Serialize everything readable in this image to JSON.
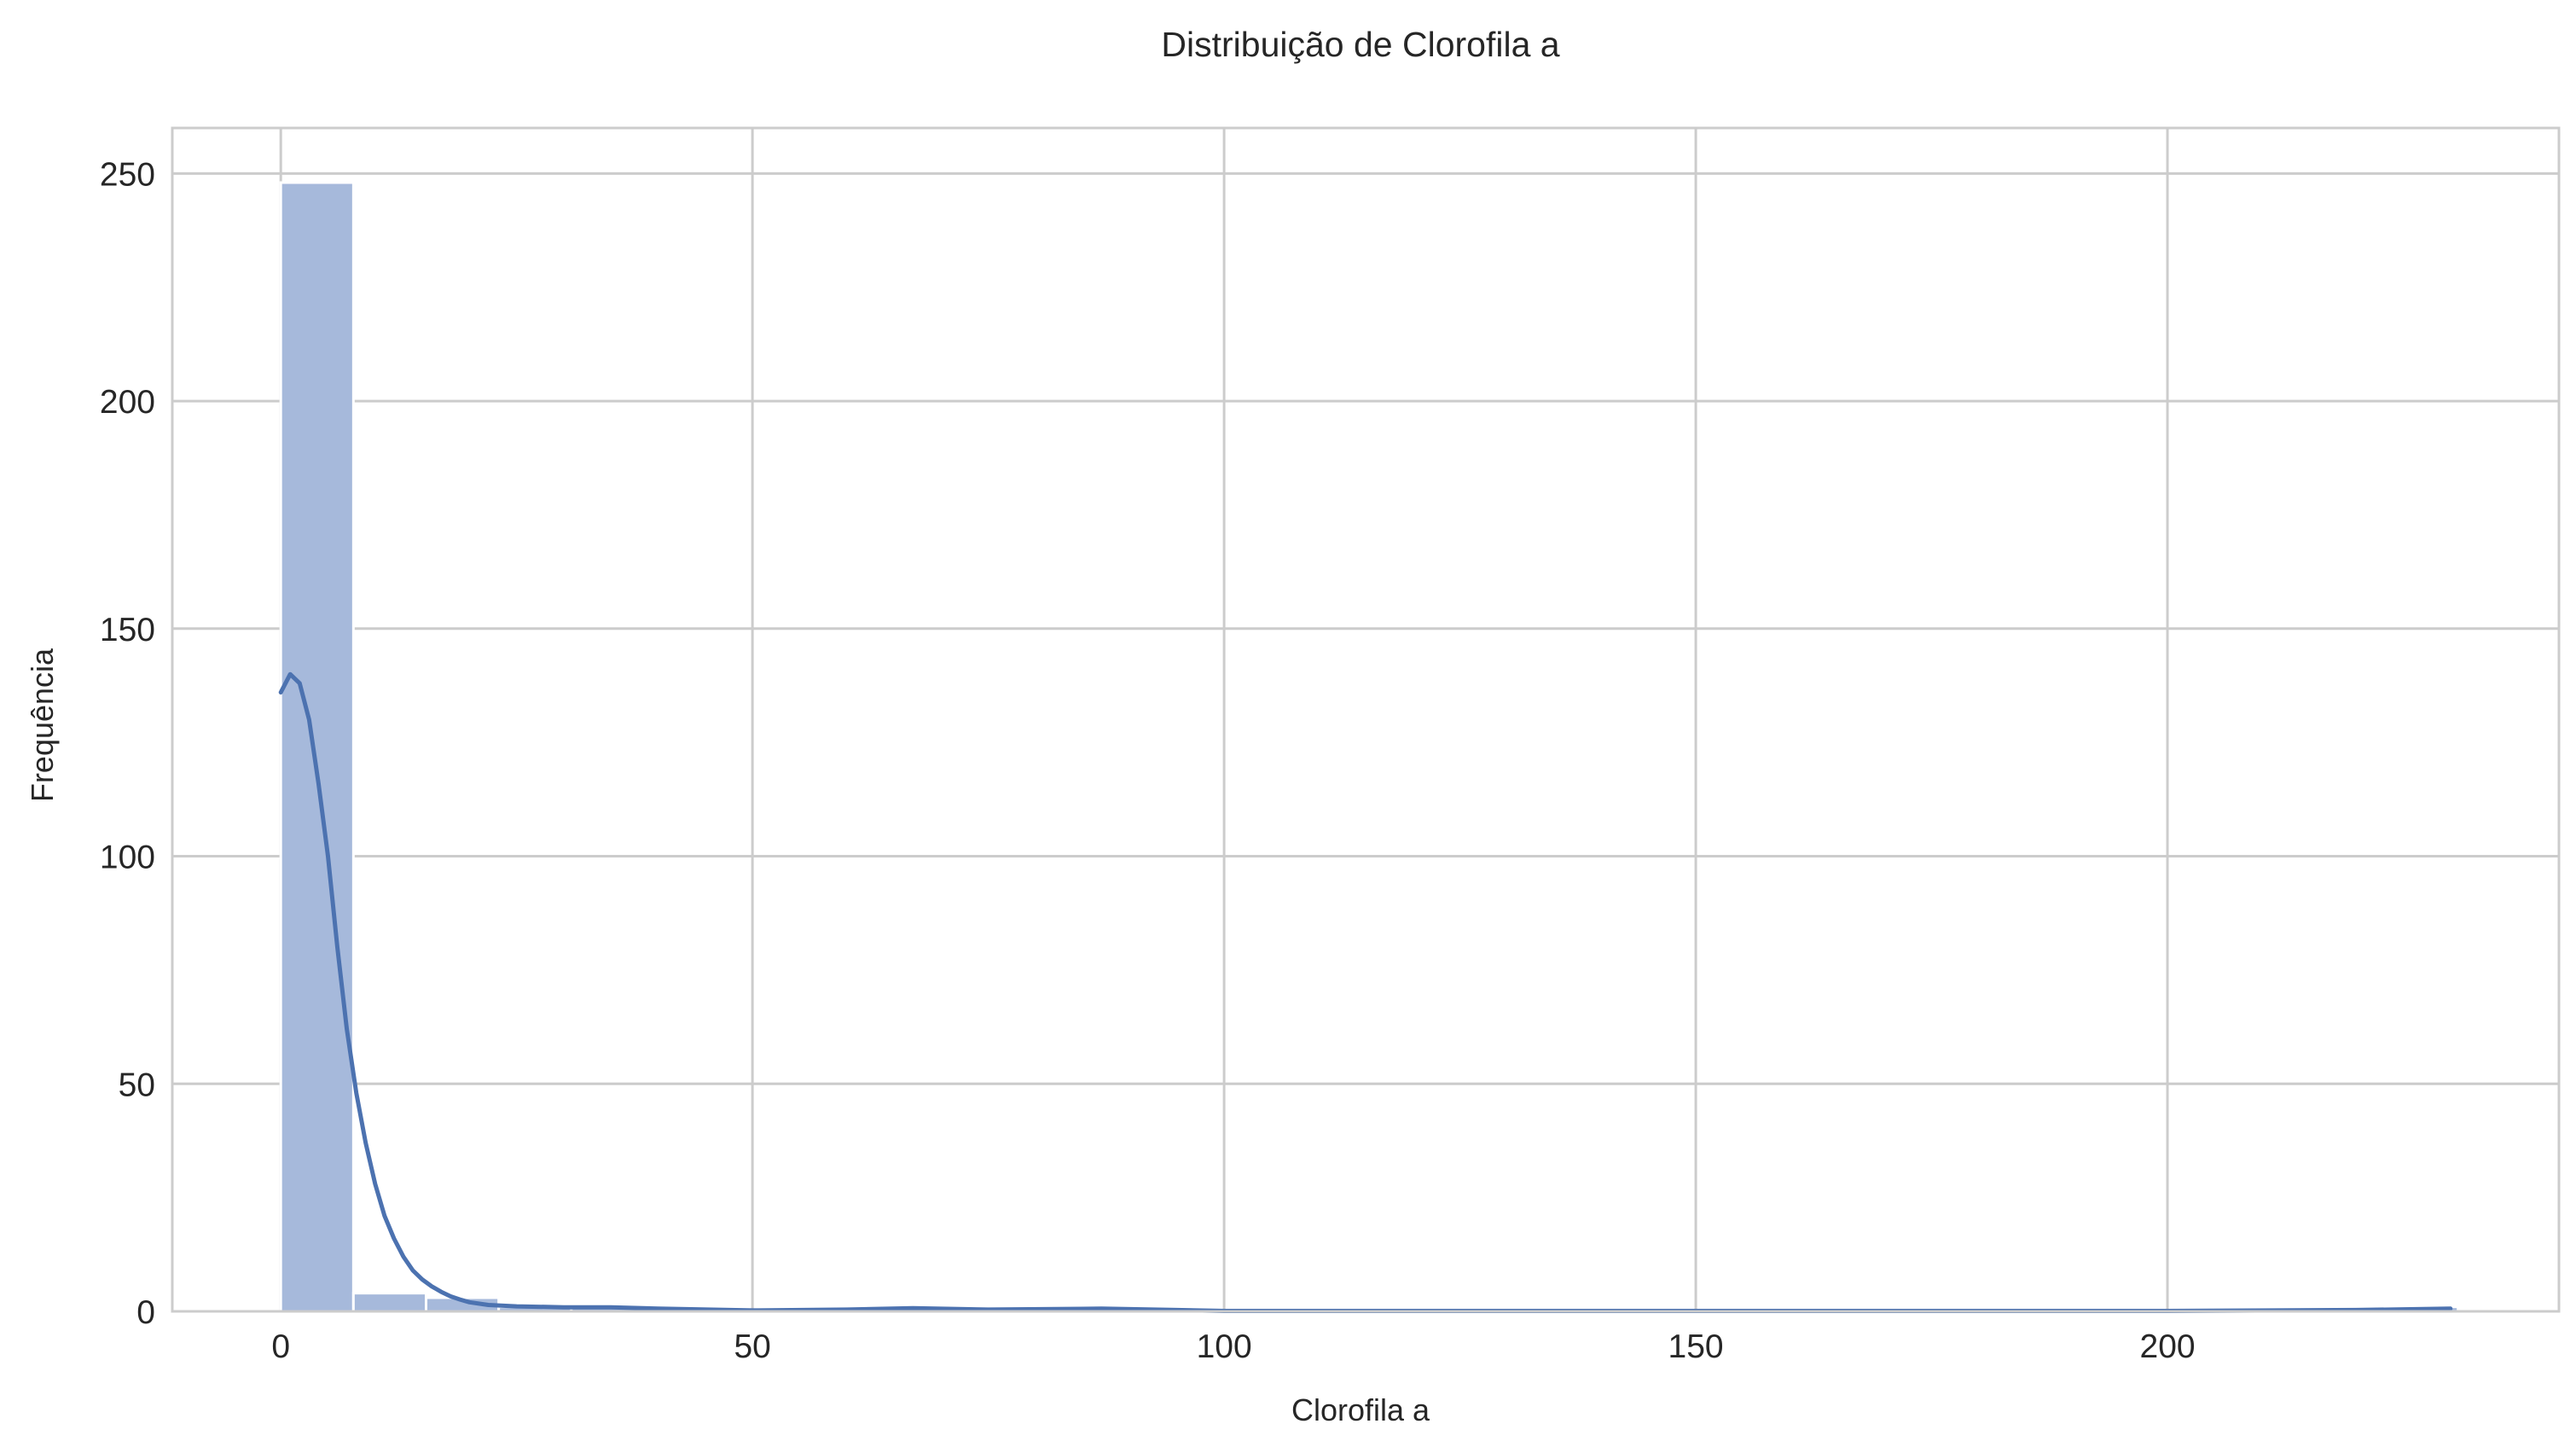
{
  "chart_data": {
    "type": "bar",
    "title": "Distribuição de Clorofila a",
    "xlabel": "Clorofila a",
    "ylabel": "Frequência",
    "xlim": [
      -11.5,
      241.5
    ],
    "ylim": [
      0,
      260
    ],
    "x_ticks": [
      0,
      50,
      100,
      150,
      200
    ],
    "y_ticks": [
      0,
      50,
      100,
      150,
      200,
      250
    ],
    "grid": true,
    "legend": "none",
    "bin_width": 7.7,
    "bins": [
      {
        "start": 0.0,
        "end": 7.7,
        "count": 248
      },
      {
        "start": 7.7,
        "end": 15.4,
        "count": 4
      },
      {
        "start": 15.4,
        "end": 23.1,
        "count": 3
      },
      {
        "start": 23.1,
        "end": 30.8,
        "count": 1
      },
      {
        "start": 30.8,
        "end": 38.5,
        "count": 1
      },
      {
        "start": 38.5,
        "end": 46.2,
        "count": 1
      },
      {
        "start": 46.2,
        "end": 53.9,
        "count": 0
      },
      {
        "start": 53.9,
        "end": 61.6,
        "count": 0
      },
      {
        "start": 61.6,
        "end": 69.3,
        "count": 1
      },
      {
        "start": 69.3,
        "end": 77.0,
        "count": 0
      },
      {
        "start": 77.0,
        "end": 84.7,
        "count": 0
      },
      {
        "start": 84.7,
        "end": 92.4,
        "count": 1
      },
      {
        "start": 92.4,
        "end": 100.1,
        "count": 0
      },
      {
        "start": 223.1,
        "end": 230.8,
        "count": 1
      }
    ],
    "kde": {
      "x": [
        0,
        1,
        2,
        3,
        4,
        5,
        6,
        7,
        8,
        9,
        10,
        11,
        12,
        13,
        14,
        15,
        16,
        17,
        18,
        19,
        20,
        22,
        25,
        30,
        35,
        40,
        50,
        60,
        67,
        75,
        87,
        95,
        100,
        150,
        200,
        220,
        230
      ],
      "y": [
        136,
        140,
        138,
        130,
        116,
        100,
        80,
        62,
        48,
        37,
        28,
        21,
        16,
        12,
        9,
        7,
        5.5,
        4.3,
        3.3,
        2.6,
        2.0,
        1.4,
        1.1,
        0.9,
        0.9,
        0.6,
        0.2,
        0.4,
        0.7,
        0.4,
        0.6,
        0.3,
        0.1,
        0.1,
        0.1,
        0.3,
        0.6
      ]
    },
    "colors": {
      "bar": "#a6b9db",
      "kde_line": "#4c72b0",
      "grid": "#cccccc",
      "spine": "#cccccc"
    }
  }
}
